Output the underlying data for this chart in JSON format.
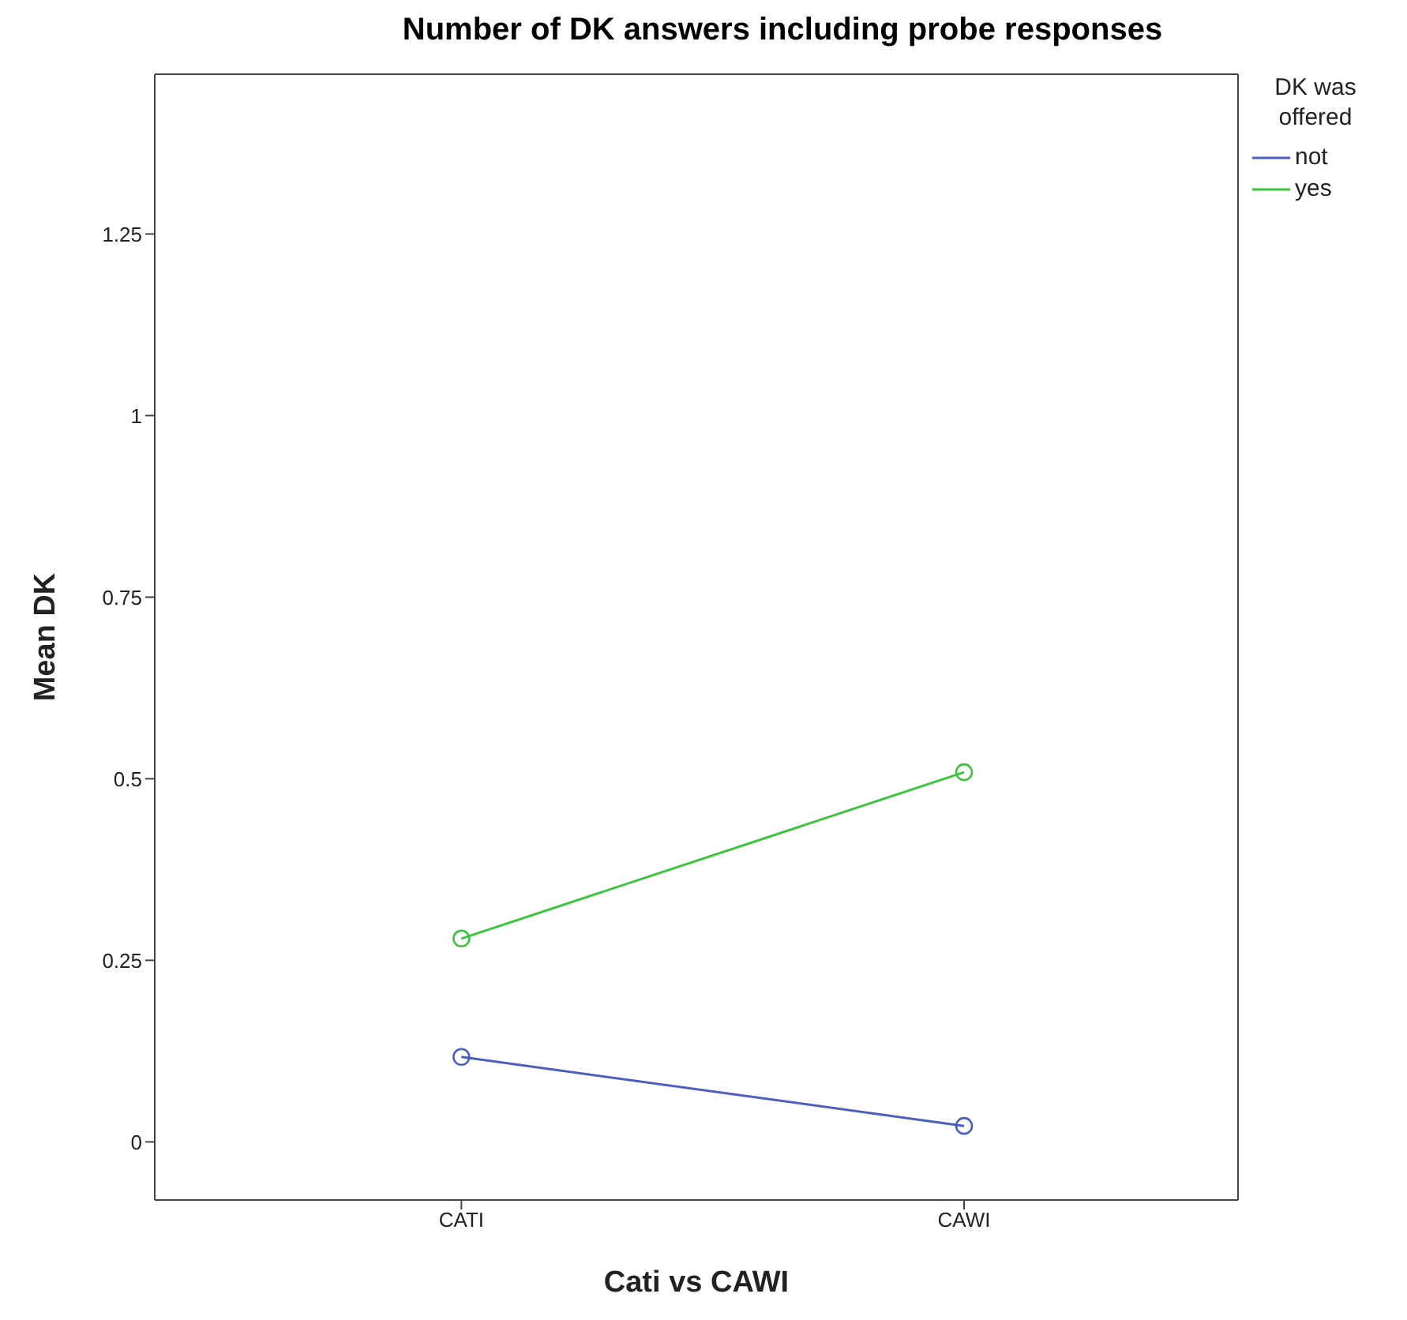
{
  "chart_data": {
    "type": "line",
    "title": "Number of DK answers including probe responses",
    "xlabel": "Cati vs CAWI",
    "ylabel": "Mean DK",
    "legend_title": "DK was offered",
    "categories": [
      "CATI",
      "CAWI"
    ],
    "series": [
      {
        "name": "not",
        "color": "#4c5fc0",
        "values": [
          0.117,
          0.022
        ]
      },
      {
        "name": "yes",
        "color": "#3cc43c",
        "values": [
          0.28,
          0.509
        ]
      }
    ],
    "ylim": [
      -0.08,
      1.47
    ],
    "yticks": [
      0,
      0.25,
      0.5,
      0.75,
      1,
      1.25
    ],
    "legend": "top right",
    "marker": "circle",
    "line_style": "solid"
  }
}
